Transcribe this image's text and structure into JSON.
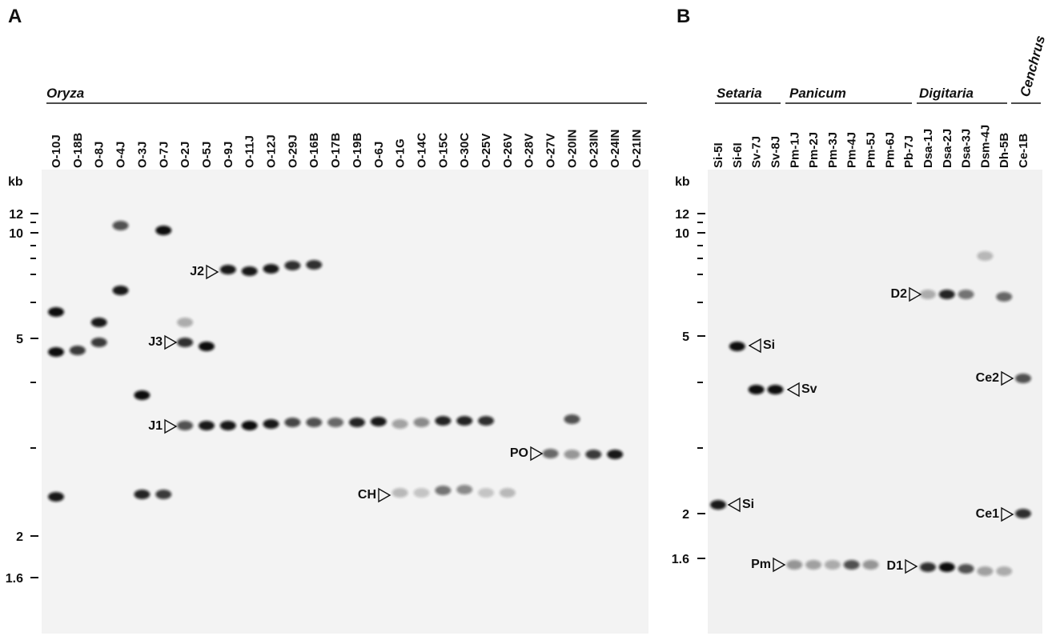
{
  "panel_a": {
    "label": "A",
    "group": "Oryza",
    "lanes": [
      "O-10J",
      "O-18B",
      "O-8J",
      "O-4J",
      "O-3J",
      "O-7J",
      "O-2J",
      "O-5J",
      "O-9J",
      "O-11J",
      "O-12J",
      "O-29J",
      "O-16B",
      "O-17B",
      "O-19B",
      "O-6J",
      "O-1G",
      "O-14C",
      "O-15C",
      "O-30C",
      "O-25V",
      "O-26V",
      "O-28V",
      "O-27V",
      "O-20IN",
      "O-23IN",
      "O-24IN",
      "O-21IN"
    ],
    "size_unit": "kb",
    "markers": [
      "12",
      "10",
      "5",
      "2",
      "1.6"
    ],
    "annotations": [
      "J2",
      "J3",
      "J1",
      "CH",
      "PO"
    ]
  },
  "panel_b": {
    "label": "B",
    "groups": [
      "Setaria",
      "Panicum",
      "Digitaria",
      "Cenchrus"
    ],
    "lanes": [
      "Si-5I",
      "Si-6I",
      "Sv-7J",
      "Sv-8J",
      "Pm-1J",
      "Pm-2J",
      "Pm-3J",
      "Pm-4J",
      "Pm-5J",
      "Pm-6J",
      "Pb-7J",
      "Dsa-1J",
      "Dsa-2J",
      "Dsa-3J",
      "Dsm-4J",
      "Dh-5B",
      "Ce-1B"
    ],
    "size_unit": "kb",
    "markers": [
      "12",
      "10",
      "5",
      "2",
      "1.6"
    ],
    "annotations": [
      "D2",
      "Si",
      "Sv",
      "Ce2",
      "Si",
      "Ce1",
      "Pm",
      "D1"
    ]
  }
}
